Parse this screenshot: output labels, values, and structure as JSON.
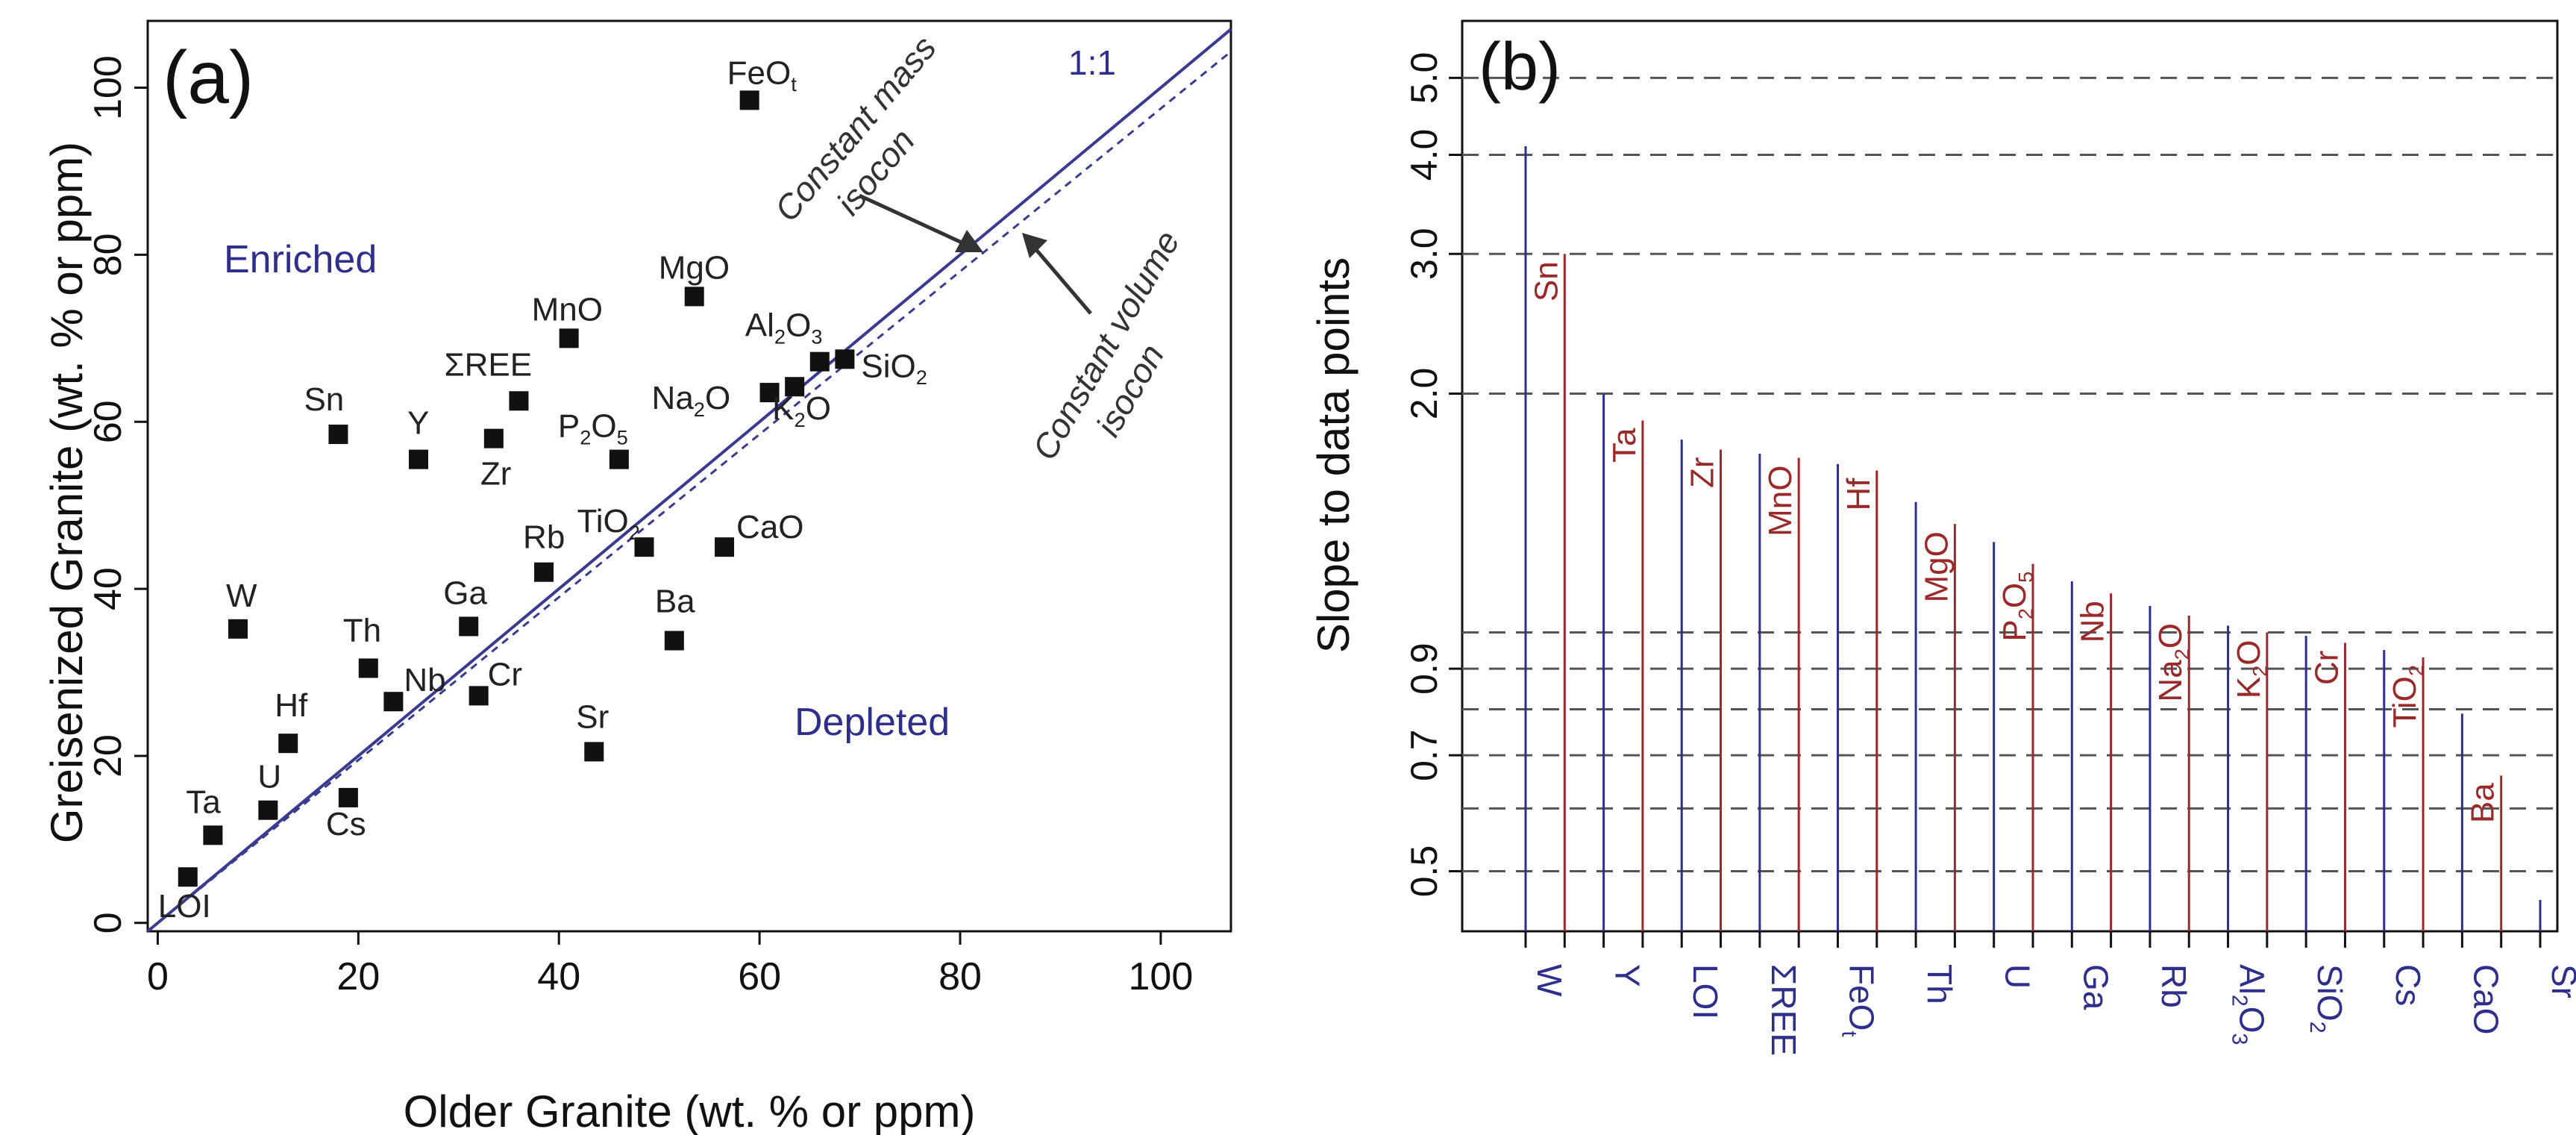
{
  "colors": {
    "ink": "#111111",
    "blue": "#2e2e8c",
    "red": "#9a2a2a",
    "grid": "#555555",
    "diag": "#3a3a90"
  },
  "chart_data": [
    {
      "type": "scatter",
      "panel_label": "(a)",
      "xlabel": "Older Granite (wt. % or ppm)",
      "ylabel": "Greisenized Granite (wt. % or ppm)",
      "xlim": [
        -1,
        107
      ],
      "ylim": [
        -1,
        108
      ],
      "x_ticks": [
        0,
        20,
        40,
        60,
        80,
        100
      ],
      "y_ticks": [
        0,
        20,
        40,
        60,
        80,
        100
      ],
      "region_labels": {
        "enriched": "Enriched",
        "depleted": "Depleted"
      },
      "line_labels": {
        "one_to_one": "1:1",
        "mass_1": "Constant mass",
        "mass_2": "isocon",
        "volume_1": "Constant volume",
        "volume_2": "isocon"
      },
      "constant_volume_slope": 0.975,
      "points": [
        {
          "label": "FeO",
          "sub": "t",
          "x": 59,
          "y": 98.5
        },
        {
          "label": "MgO",
          "sub": "",
          "x": 53.5,
          "y": 75
        },
        {
          "label": "MnO",
          "sub": "",
          "x": 41,
          "y": 70
        },
        {
          "label": "ΣREE",
          "sub": "",
          "x": 36,
          "y": 62.5
        },
        {
          "label": "Sn",
          "sub": "",
          "x": 18,
          "y": 58.5
        },
        {
          "label": "Y",
          "sub": "",
          "x": 26,
          "y": 55.5
        },
        {
          "label": "Zr",
          "sub": "",
          "x": 33.5,
          "y": 58
        },
        {
          "label": "P",
          "sub": "2",
          "tail": "O",
          "sub2": "5",
          "x": 46,
          "y": 55.5
        },
        {
          "label": "Al",
          "sub": "2",
          "tail": "O",
          "sub2": "3",
          "x": 66,
          "y": 67.2
        },
        {
          "label": "SiO",
          "sub": "2",
          "x": 68.5,
          "y": 67.5
        },
        {
          "label": "Na",
          "sub": "2",
          "tail": "O",
          "x": 61,
          "y": 63.5
        },
        {
          "label": "K",
          "sub": "2",
          "tail": "O",
          "x": 63.5,
          "y": 64.2
        },
        {
          "label": "Rb",
          "sub": "",
          "x": 38.5,
          "y": 42
        },
        {
          "label": "TiO",
          "sub": "2",
          "x": 48.5,
          "y": 45
        },
        {
          "label": "CaO",
          "sub": "",
          "x": 56.5,
          "y": 45
        },
        {
          "label": "Ba",
          "sub": "",
          "x": 51.5,
          "y": 33.8
        },
        {
          "label": "Ga",
          "sub": "",
          "x": 31,
          "y": 35.5
        },
        {
          "label": "W",
          "sub": "",
          "x": 8,
          "y": 35.2
        },
        {
          "label": "Th",
          "sub": "",
          "x": 21,
          "y": 30.5
        },
        {
          "label": "Nb",
          "sub": "",
          "x": 23.5,
          "y": 26.5
        },
        {
          "label": "Cr",
          "sub": "",
          "x": 32,
          "y": 27.2
        },
        {
          "label": "Hf",
          "sub": "",
          "x": 13,
          "y": 21.5
        },
        {
          "label": "Sr",
          "sub": "",
          "x": 43.5,
          "y": 20.5
        },
        {
          "label": "U",
          "sub": "",
          "x": 11,
          "y": 13.5
        },
        {
          "label": "Cs",
          "sub": "",
          "x": 19,
          "y": 15
        },
        {
          "label": "Ta",
          "sub": "",
          "x": 5.5,
          "y": 10.5
        },
        {
          "label": "LOI",
          "sub": "",
          "x": 3,
          "y": 5.5
        }
      ]
    },
    {
      "type": "bar",
      "panel_label": "(b)",
      "ylabel": "Slope to data points",
      "y_scale": "log",
      "ylim": [
        0.42,
        5.9
      ],
      "y_tick_labels": [
        {
          "value": 0.5,
          "label": "0.5"
        },
        {
          "value": 0.7,
          "label": "0.7"
        },
        {
          "value": 0.9,
          "label": "0.9"
        },
        {
          "value": 2.0,
          "label": "2.0"
        },
        {
          "value": 3.0,
          "label": "3.0"
        },
        {
          "value": 4.0,
          "label": "4.0"
        },
        {
          "value": 5.0,
          "label": "5.0"
        }
      ],
      "gridlines": [
        0.5,
        0.6,
        0.7,
        0.8,
        0.9,
        1.0,
        2.0,
        3.0,
        4.0,
        5.0
      ],
      "bars": [
        {
          "name": "W",
          "sub": "",
          "color": "blue",
          "value": 4.1,
          "axis_label": true
        },
        {
          "name": "Sn",
          "sub": "",
          "color": "red",
          "value": 3.0,
          "axis_label": false
        },
        {
          "name": "Y",
          "sub": "",
          "color": "blue",
          "value": 2.0,
          "axis_label": true
        },
        {
          "name": "Ta",
          "sub": "",
          "color": "red",
          "value": 1.85,
          "axis_label": false
        },
        {
          "name": "LOI",
          "sub": "",
          "color": "blue",
          "value": 1.75,
          "axis_label": true
        },
        {
          "name": "Zr",
          "sub": "",
          "color": "red",
          "value": 1.7,
          "axis_label": false
        },
        {
          "name": "ΣREE",
          "sub": "",
          "color": "blue",
          "value": 1.68,
          "axis_label": true
        },
        {
          "name": "MnO",
          "sub": "",
          "color": "red",
          "value": 1.66,
          "axis_label": false
        },
        {
          "name": "FeO",
          "sub": "t",
          "color": "blue",
          "value": 1.63,
          "axis_label": true
        },
        {
          "name": "Hf",
          "sub": "",
          "color": "red",
          "value": 1.6,
          "axis_label": false
        },
        {
          "name": "Th",
          "sub": "",
          "color": "blue",
          "value": 1.46,
          "axis_label": true
        },
        {
          "name": "MgO",
          "sub": "",
          "color": "red",
          "value": 1.37,
          "axis_label": false
        },
        {
          "name": "U",
          "sub": "",
          "color": "blue",
          "value": 1.3,
          "axis_label": true
        },
        {
          "name": "P",
          "sub": "2",
          "tail": "O",
          "sub2": "5",
          "color": "red",
          "value": 1.22,
          "axis_label": false
        },
        {
          "name": "Ga",
          "sub": "",
          "color": "blue",
          "value": 1.16,
          "axis_label": true
        },
        {
          "name": "Nb",
          "sub": "",
          "color": "red",
          "value": 1.12,
          "axis_label": false
        },
        {
          "name": "Rb",
          "sub": "",
          "color": "blue",
          "value": 1.08,
          "axis_label": true
        },
        {
          "name": "Na",
          "sub": "2",
          "tail": "O",
          "color": "red",
          "value": 1.05,
          "axis_label": false
        },
        {
          "name": "Al",
          "sub": "2",
          "tail": "O",
          "sub2": "3",
          "color": "blue",
          "value": 1.02,
          "axis_label": true
        },
        {
          "name": "K",
          "sub": "2",
          "tail": "O",
          "color": "red",
          "value": 1.0,
          "axis_label": false
        },
        {
          "name": "SiO",
          "sub": "2",
          "color": "blue",
          "value": 0.99,
          "axis_label": true
        },
        {
          "name": "Cr",
          "sub": "",
          "color": "red",
          "value": 0.97,
          "axis_label": false
        },
        {
          "name": "Cs",
          "sub": "",
          "color": "blue",
          "value": 0.95,
          "axis_label": true
        },
        {
          "name": "TiO",
          "sub": "2",
          "color": "red",
          "value": 0.93,
          "axis_label": false
        },
        {
          "name": "CaO",
          "sub": "",
          "color": "blue",
          "value": 0.79,
          "axis_label": true
        },
        {
          "name": "Ba",
          "sub": "",
          "color": "red",
          "value": 0.66,
          "axis_label": false
        },
        {
          "name": "Sr",
          "sub": "",
          "color": "blue",
          "value": 0.46,
          "axis_label": true
        }
      ]
    }
  ]
}
